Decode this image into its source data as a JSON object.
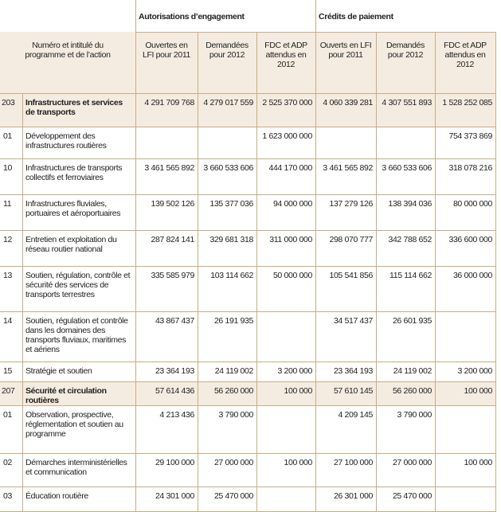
{
  "header": {
    "groups": [
      "Autorisations d’engagement",
      "Crédits de paiement"
    ],
    "columns": [
      "Numéro et intitulé du programme et de l’action",
      "Ouvertes en LFI pour 2011",
      "Demandées pour 2012",
      "FDC et ADP attendus en 2012",
      "Ouverts en LFI pour 2011",
      "Demandés pour 2012",
      "FDC et ADP attendus en 2012"
    ]
  },
  "table": {
    "rows": [
      [
        "203",
        "Infrastructures et services de transports",
        "4 291 709 768",
        "4 279 017 559",
        "2 525 370 000",
        "4 060 339 281",
        "4 307 551 893",
        "1 528 252 085"
      ],
      [
        "01",
        "Développement des infrastructures routières",
        null,
        null,
        "1 623 000 000",
        null,
        null,
        "754 373 869"
      ],
      [
        "10",
        "Infrastructures de transports collectifs et ferroviaires",
        "3 461 565 892",
        "3 660 533 606",
        "444 170 000",
        "3 461 565 892",
        "3 660 533 606",
        "318 078 216"
      ],
      [
        "11",
        "Infrastructures fluviales, portuaires et aéroportuaires",
        "139 502 126",
        "135 377 036",
        "94 000 000",
        "137 279 126",
        "138 394 036",
        "80 000 000"
      ],
      [
        "12",
        "Entretien et exploitation du réseau routier national",
        "287 824 141",
        "329 681 318",
        "311 000 000",
        "298 070 777",
        "342 788 652",
        "336 600 000"
      ],
      [
        "13",
        "Soutien, régulation, contrôle et sécurité des services de transports terrestres",
        "335 585 979",
        "103 114 662",
        "50 000 000",
        "105 541 856",
        "115 114 662",
        "36 000 000"
      ],
      [
        "14",
        "Soutien, régulation et contrôle dans les domaines des transports fluviaux, maritimes et aériens",
        "43 867 437",
        "26 191 935",
        null,
        "34 517 437",
        "26 601 935",
        null
      ],
      [
        "15",
        "Stratégie et soutien",
        "23 364 193",
        "24 119 002",
        "3 200 000",
        "23 364 193",
        "24 119 002",
        "3 200 000"
      ],
      [
        "207",
        "Sécurité et circulation routières",
        "57 614 436",
        "56 260 000",
        "100 000",
        "57 610 145",
        "56 260 000",
        "100 000"
      ],
      [
        "01",
        "Observation, prospective, réglementation et soutien au programme",
        "4 213 436",
        "3 790 000",
        null,
        "4 209 145",
        "3 790 000",
        null
      ],
      [
        "02",
        "Démarches interministérielles et communication",
        "29 100 000",
        "27 000 000",
        "100 000",
        "27 100 000",
        "27 000 000",
        "100 000"
      ],
      [
        "03",
        "Éducation routière",
        "24 301 000",
        "25 470 000",
        null,
        "26 301 000",
        "25 470 000",
        null
      ]
    ]
  }
}
